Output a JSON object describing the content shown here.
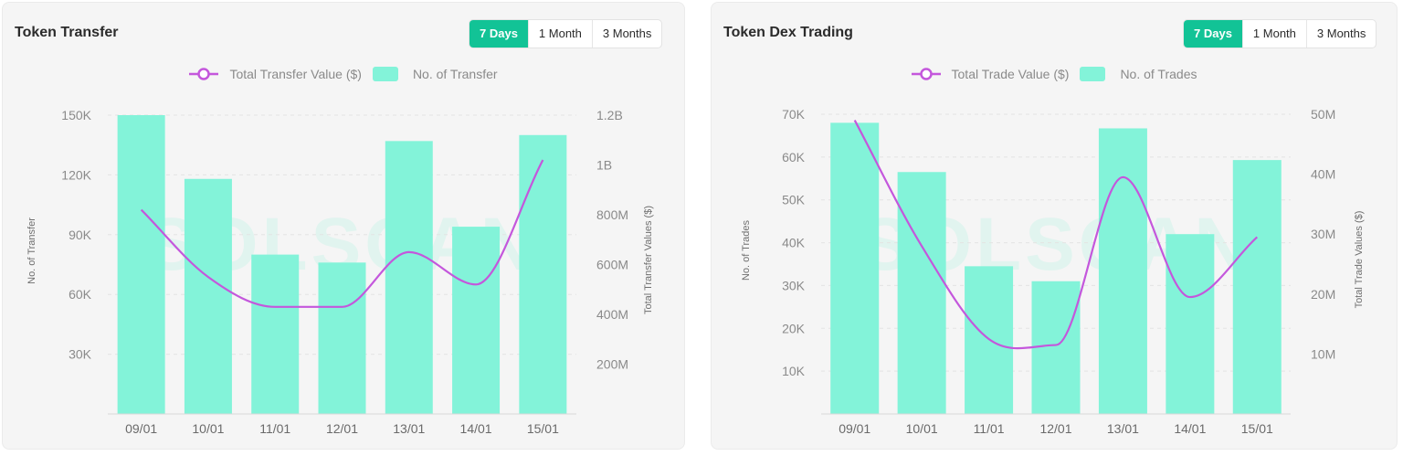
{
  "charts": [
    {
      "title": "Token Transfer",
      "tabs": [
        "7 Days",
        "1 Month",
        "3 Months"
      ],
      "active_tab": 0,
      "legend": {
        "line": "Total Transfer Value ($)",
        "bar": "No. of Transfer"
      },
      "watermark": "SOLSCAN"
    },
    {
      "title": "Token Dex Trading",
      "tabs": [
        "7 Days",
        "1 Month",
        "3 Months"
      ],
      "active_tab": 0,
      "legend": {
        "line": "Total Trade Value ($)",
        "bar": "No. of Trades"
      },
      "watermark": "SOLSCAN"
    }
  ],
  "colors": {
    "bar": "#83f3d9",
    "line": "#c457dc",
    "accent": "#12c396"
  },
  "chart_data": [
    {
      "type": "bar",
      "categories": [
        "09/01",
        "10/01",
        "11/01",
        "12/01",
        "13/01",
        "14/01",
        "15/01"
      ],
      "series": [
        {
          "name": "No. of Transfer",
          "type": "bar",
          "axis": "left",
          "values": [
            150000,
            118000,
            80000,
            76000,
            137000,
            94000,
            140000
          ]
        },
        {
          "name": "Total Transfer Value ($)",
          "type": "line",
          "axis": "right",
          "values": [
            820000000,
            550000000,
            430000000,
            430000000,
            650000000,
            520000000,
            1020000000
          ]
        }
      ],
      "ylabel": "No. of Transfer",
      "y2label": "Total Transfer Values ($)",
      "yticks": [
        30000,
        60000,
        90000,
        120000,
        150000
      ],
      "yticklabels": [
        "30K",
        "60K",
        "90K",
        "120K",
        "150K"
      ],
      "ylim": [
        0,
        150000
      ],
      "y2ticks": [
        200000000,
        400000000,
        600000000,
        800000000,
        1000000000,
        1200000000
      ],
      "y2ticklabels": [
        "200M",
        "400M",
        "600M",
        "800M",
        "1B",
        "1.2B"
      ],
      "y2lim": [
        0,
        1200000000
      ],
      "grid": true,
      "legend_position": "top"
    },
    {
      "type": "bar",
      "categories": [
        "09/01",
        "10/01",
        "11/01",
        "12/01",
        "13/01",
        "14/01",
        "15/01"
      ],
      "series": [
        {
          "name": "No. of Trades",
          "type": "bar",
          "axis": "left",
          "values": [
            68000,
            56500,
            34500,
            31000,
            66700,
            42000,
            59300
          ]
        },
        {
          "name": "Total Trade Value ($)",
          "type": "line",
          "axis": "right",
          "values": [
            49000000,
            28000000,
            12500000,
            11500000,
            39500000,
            19500000,
            29500000
          ]
        }
      ],
      "ylabel": "No. of Trades",
      "y2label": "Total Trade Values ($)",
      "yticks": [
        10000,
        20000,
        30000,
        40000,
        50000,
        60000,
        70000
      ],
      "yticklabels": [
        "10K",
        "20K",
        "30K",
        "40K",
        "50K",
        "60K",
        "70K"
      ],
      "ylim": [
        0,
        70000
      ],
      "y2ticks": [
        10000000,
        20000000,
        30000000,
        40000000,
        50000000
      ],
      "y2ticklabels": [
        "10M",
        "20M",
        "30M",
        "40M",
        "50M"
      ],
      "y2lim": [
        0,
        50000000
      ],
      "grid": true,
      "legend_position": "top"
    }
  ]
}
